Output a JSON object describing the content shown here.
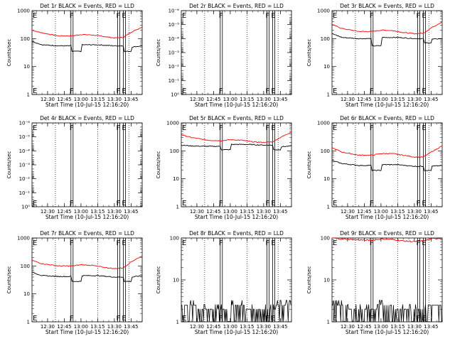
{
  "chart_data": [
    {
      "type": "line",
      "title": "Det 1r BLACK = Events, RED = LLD",
      "xlabel": "Start Time (10-Jul-15 12:16:20)",
      "ylabel": "Counts/sec",
      "yscale": "log",
      "ylim": [
        1,
        1000
      ],
      "yticks": [
        1,
        10,
        100,
        1000
      ],
      "ytick_labels": [
        "1",
        "10",
        "100",
        "1000"
      ],
      "xlim": [
        "12:16",
        "13:55"
      ],
      "xticks": [
        "12:30",
        "12:45",
        "13:00",
        "13:15",
        "13:30",
        "13:45"
      ],
      "dotted_lines": [
        "12:37",
        "13:15",
        "13:43"
      ],
      "flag_lines": [
        {
          "label": "F",
          "time": "12:51"
        },
        {
          "label": "F",
          "time": "13:33"
        },
        {
          "label": "E",
          "time": "13:38"
        },
        {
          "label": "E",
          "time": "12:16"
        }
      ],
      "series": [
        {
          "color": "#ff0000",
          "x": [
            "12:16",
            "12:25",
            "12:40",
            "12:52",
            "13:00",
            "13:10",
            "13:20",
            "13:30",
            "13:38",
            "13:45",
            "13:55"
          ],
          "y": [
            200,
            160,
            125,
            125,
            140,
            135,
            120,
            105,
            110,
            170,
            260
          ]
        },
        {
          "color": "#000000",
          "x": [
            "12:16",
            "12:25",
            "12:40",
            "12:51",
            "12:52",
            "13:00",
            "13:01",
            "13:15",
            "13:30",
            "13:38",
            "13:39",
            "13:45",
            "13:46",
            "13:55"
          ],
          "y": [
            80,
            60,
            55,
            55,
            35,
            35,
            60,
            60,
            55,
            55,
            35,
            35,
            50,
            55
          ]
        }
      ]
    },
    {
      "type": "line",
      "title": "Det 2r BLACK = Events, RED = LLD",
      "xlabel": "Start Time (10-Jul-15 12:16:20)",
      "ylabel": "Counts/sec",
      "yscale": "log",
      "ylim": [
        1,
        1e-06
      ],
      "yticks": [
        1,
        0.1,
        0.01,
        0.001,
        0.0001,
        1e-05,
        1e-06
      ],
      "ytick_labels": [
        "10⁰",
        "10⁻¹",
        "10⁻²",
        "10⁻³",
        "10⁻⁴",
        "10⁻⁵",
        "10⁻⁶"
      ],
      "xlim": [
        "12:16",
        "13:55"
      ],
      "xticks": [
        "12:30",
        "12:45",
        "13:00",
        "13:15",
        "13:30",
        "13:45"
      ],
      "dotted_lines": [
        "12:37",
        "13:15",
        "13:43"
      ],
      "flag_lines": [
        {
          "label": "F",
          "time": "12:51"
        },
        {
          "label": "F",
          "time": "13:33"
        },
        {
          "label": "E",
          "time": "13:38"
        },
        {
          "label": "E",
          "time": "12:16"
        }
      ],
      "series": []
    },
    {
      "type": "line",
      "title": "Det 3r BLACK = Events, RED = LLD",
      "xlabel": "Start Time (10-Jul-15 12:16:20)",
      "ylabel": "Counts/sec",
      "yscale": "log",
      "ylim": [
        1,
        1000
      ],
      "yticks": [
        1,
        10,
        100,
        1000
      ],
      "ytick_labels": [
        "1",
        "10",
        "100",
        "1000"
      ],
      "xlim": [
        "12:16",
        "13:55"
      ],
      "xticks": [
        "12:30",
        "12:45",
        "13:00",
        "13:15",
        "13:30",
        "13:45"
      ],
      "dotted_lines": [
        "12:37",
        "13:15",
        "13:43"
      ],
      "flag_lines": [
        {
          "label": "F",
          "time": "12:51"
        },
        {
          "label": "F",
          "time": "13:33"
        },
        {
          "label": "E",
          "time": "13:38"
        },
        {
          "label": "E",
          "time": "12:16"
        }
      ],
      "series": [
        {
          "color": "#ff0000",
          "x": [
            "12:16",
            "12:25",
            "12:40",
            "12:52",
            "13:00",
            "13:10",
            "13:20",
            "13:30",
            "13:38",
            "13:45",
            "13:55"
          ],
          "y": [
            320,
            230,
            180,
            180,
            200,
            195,
            165,
            150,
            155,
            240,
            400
          ]
        },
        {
          "color": "#000000",
          "x": [
            "12:16",
            "12:25",
            "12:40",
            "12:51",
            "12:52",
            "13:00",
            "13:01",
            "13:15",
            "13:30",
            "13:38",
            "13:39",
            "13:45",
            "13:46",
            "13:55"
          ],
          "y": [
            150,
            110,
            100,
            100,
            55,
            55,
            110,
            110,
            100,
            100,
            70,
            70,
            95,
            100
          ]
        }
      ]
    },
    {
      "type": "line",
      "title": "Det 4r BLACK = Events, RED = LLD",
      "xlabel": "Start Time (10-Jul-15 12:16:20)",
      "ylabel": "Counts/sec",
      "yscale": "log",
      "ylim": [
        1,
        1e-06
      ],
      "yticks": [
        1,
        0.1,
        0.01,
        0.001,
        0.0001,
        1e-05,
        1e-06
      ],
      "ytick_labels": [
        "10⁰",
        "10⁻¹",
        "10⁻²",
        "10⁻³",
        "10⁻⁴",
        "10⁻⁵",
        "10⁻⁶"
      ],
      "xlim": [
        "12:16",
        "13:55"
      ],
      "xticks": [
        "12:30",
        "12:45",
        "13:00",
        "13:15",
        "13:30",
        "13:45"
      ],
      "dotted_lines": [
        "12:37",
        "13:15",
        "13:43"
      ],
      "flag_lines": [
        {
          "label": "F",
          "time": "12:51"
        },
        {
          "label": "F",
          "time": "13:33"
        },
        {
          "label": "E",
          "time": "13:38"
        },
        {
          "label": "E",
          "time": "12:16"
        }
      ],
      "series": []
    },
    {
      "type": "line",
      "title": "Det 5r BLACK = Events, RED = LLD",
      "xlabel": "Start Time (10-Jul-15 12:16:20)",
      "ylabel": "Counts/sec",
      "yscale": "log",
      "ylim": [
        1,
        1000
      ],
      "yticks": [
        1,
        10,
        100,
        1000
      ],
      "ytick_labels": [
        "1",
        "10",
        "100",
        "1000"
      ],
      "xlim": [
        "12:16",
        "13:55"
      ],
      "xticks": [
        "12:30",
        "12:45",
        "13:00",
        "13:15",
        "13:30",
        "13:45"
      ],
      "dotted_lines": [
        "12:37",
        "13:15",
        "13:43"
      ],
      "flag_lines": [
        {
          "label": "F",
          "time": "12:51"
        },
        {
          "label": "F",
          "time": "13:33"
        },
        {
          "label": "E",
          "time": "13:38"
        },
        {
          "label": "E",
          "time": "12:16"
        }
      ],
      "series": [
        {
          "color": "#ff0000",
          "x": [
            "12:16",
            "12:25",
            "12:40",
            "12:52",
            "13:00",
            "13:10",
            "13:20",
            "13:30",
            "13:38",
            "13:45",
            "13:55"
          ],
          "y": [
            380,
            300,
            240,
            230,
            250,
            240,
            210,
            200,
            210,
            300,
            480
          ]
        },
        {
          "color": "#000000",
          "x": [
            "12:16",
            "12:25",
            "12:40",
            "12:51",
            "12:52",
            "13:00",
            "13:01",
            "13:15",
            "13:30",
            "13:38",
            "13:39",
            "13:45",
            "13:46",
            "13:55"
          ],
          "y": [
            160,
            150,
            145,
            145,
            110,
            110,
            170,
            170,
            160,
            160,
            110,
            110,
            140,
            150
          ]
        }
      ]
    },
    {
      "type": "line",
      "title": "Det 6r BLACK = Events, RED = LLD",
      "xlabel": "Start Time (10-Jul-15 12:16:20)",
      "ylabel": "Counts/sec",
      "yscale": "log",
      "ylim": [
        1,
        1000
      ],
      "yticks": [
        1,
        10,
        100,
        1000
      ],
      "ytick_labels": [
        "1",
        "10",
        "100",
        "1000"
      ],
      "xlim": [
        "12:16",
        "13:55"
      ],
      "xticks": [
        "12:30",
        "12:45",
        "13:00",
        "13:15",
        "13:30",
        "13:45"
      ],
      "dotted_lines": [
        "12:37",
        "13:15",
        "13:43"
      ],
      "flag_lines": [
        {
          "label": "F",
          "time": "12:51"
        },
        {
          "label": "F",
          "time": "13:33"
        },
        {
          "label": "E",
          "time": "13:38"
        },
        {
          "label": "E",
          "time": "12:16"
        }
      ],
      "series": [
        {
          "color": "#ff0000",
          "x": [
            "12:16",
            "12:25",
            "12:40",
            "12:52",
            "13:00",
            "13:10",
            "13:20",
            "13:30",
            "13:38",
            "13:45",
            "13:55"
          ],
          "y": [
            130,
            90,
            70,
            70,
            80,
            80,
            70,
            60,
            60,
            90,
            150
          ]
        },
        {
          "color": "#000000",
          "x": [
            "12:16",
            "12:25",
            "12:40",
            "12:51",
            "12:52",
            "13:00",
            "13:01",
            "13:15",
            "13:30",
            "13:38",
            "13:39",
            "13:45",
            "13:46",
            "13:55"
          ],
          "y": [
            45,
            35,
            30,
            30,
            20,
            20,
            32,
            32,
            28,
            28,
            20,
            20,
            28,
            30
          ]
        }
      ]
    },
    {
      "type": "line",
      "title": "Det 7r BLACK = Events, RED = LLD",
      "xlabel": "Start Time (10-Jul-15 12:16:20)",
      "ylabel": "Counts/sec",
      "yscale": "log",
      "ylim": [
        1,
        1000
      ],
      "yticks": [
        1,
        10,
        100,
        1000
      ],
      "ytick_labels": [
        "1",
        "10",
        "100",
        "1000"
      ],
      "xlim": [
        "12:16",
        "13:55"
      ],
      "xticks": [
        "12:30",
        "12:45",
        "13:00",
        "13:15",
        "13:30",
        "13:45"
      ],
      "dotted_lines": [
        "12:37",
        "13:15",
        "13:43"
      ],
      "flag_lines": [
        {
          "label": "F",
          "time": "12:51"
        },
        {
          "label": "F",
          "time": "13:33"
        },
        {
          "label": "E",
          "time": "13:38"
        },
        {
          "label": "E",
          "time": "12:16"
        }
      ],
      "series": [
        {
          "color": "#ff0000",
          "x": [
            "12:16",
            "12:25",
            "12:40",
            "12:52",
            "13:00",
            "13:10",
            "13:20",
            "13:30",
            "13:38",
            "13:45",
            "13:55"
          ],
          "y": [
            160,
            120,
            100,
            100,
            110,
            105,
            90,
            80,
            85,
            140,
            230
          ]
        },
        {
          "color": "#000000",
          "x": [
            "12:16",
            "12:25",
            "12:40",
            "12:51",
            "12:52",
            "13:00",
            "13:01",
            "13:15",
            "13:30",
            "13:38",
            "13:39",
            "13:45",
            "13:46",
            "13:55"
          ],
          "y": [
            60,
            45,
            42,
            42,
            28,
            28,
            45,
            45,
            40,
            40,
            28,
            28,
            40,
            45
          ]
        }
      ]
    },
    {
      "type": "line",
      "title": "Det 8r BLACK = Events, RED = LLD",
      "xlabel": "Start Time (10-Jul-15 12:16:20)",
      "ylabel": "Counts/sec",
      "yscale": "log",
      "ylim": [
        1,
        100
      ],
      "yticks": [
        1,
        10,
        100
      ],
      "ytick_labels": [
        "1",
        "10",
        "100"
      ],
      "xlim": [
        "12:16",
        "13:55"
      ],
      "xticks": [
        "12:30",
        "12:45",
        "13:00",
        "13:15",
        "13:30",
        "13:45"
      ],
      "dotted_lines": [
        "12:37",
        "13:15",
        "13:43"
      ],
      "flag_lines": [
        {
          "label": "F",
          "time": "12:51"
        },
        {
          "label": "F",
          "time": "13:33"
        },
        {
          "label": "E",
          "time": "13:38"
        },
        {
          "label": "E",
          "time": "12:16"
        }
      ],
      "series": [
        {
          "color": "#000000",
          "noise": true,
          "x": [
            "12:16",
            "12:30",
            "12:45",
            "13:00",
            "13:15",
            "13:30",
            "13:45",
            "13:55"
          ],
          "y": [
            2.5,
            2,
            2,
            2.5,
            2,
            2,
            2.5,
            2.5
          ]
        }
      ]
    },
    {
      "type": "line",
      "title": "Det 9r BLACK = Events, RED = LLD",
      "xlabel": "Start Time (10-Jul-15 12:16:20)",
      "ylabel": "Counts/sec",
      "yscale": "log",
      "ylim": [
        1,
        100
      ],
      "yticks": [
        1,
        10,
        100
      ],
      "ytick_labels": [
        "1",
        "10",
        "100"
      ],
      "xlim": [
        "12:16",
        "13:55"
      ],
      "xticks": [
        "12:30",
        "12:45",
        "13:00",
        "13:15",
        "13:30",
        "13:45"
      ],
      "dotted_lines": [
        "12:37",
        "13:15",
        "13:43"
      ],
      "flag_lines": [
        {
          "label": "F",
          "time": "12:51"
        },
        {
          "label": "F",
          "time": "13:33"
        },
        {
          "label": "E",
          "time": "13:38"
        },
        {
          "label": "E",
          "time": "12:16"
        }
      ],
      "series": [
        {
          "color": "#ff0000",
          "x": [
            "12:16",
            "12:25",
            "12:40",
            "12:52",
            "13:00",
            "13:10",
            "13:20",
            "13:30",
            "13:38",
            "13:45",
            "13:55"
          ],
          "y": [
            100,
            95,
            90,
            88,
            95,
            92,
            85,
            82,
            85,
            95,
            100
          ]
        },
        {
          "color": "#000000",
          "noise": true,
          "x": [
            "12:16",
            "12:30",
            "12:45",
            "13:00",
            "13:15",
            "13:30",
            "13:45",
            "13:55"
          ],
          "y": [
            2.5,
            2,
            2,
            2.5,
            2,
            2,
            2.5,
            3.5
          ]
        }
      ]
    }
  ]
}
